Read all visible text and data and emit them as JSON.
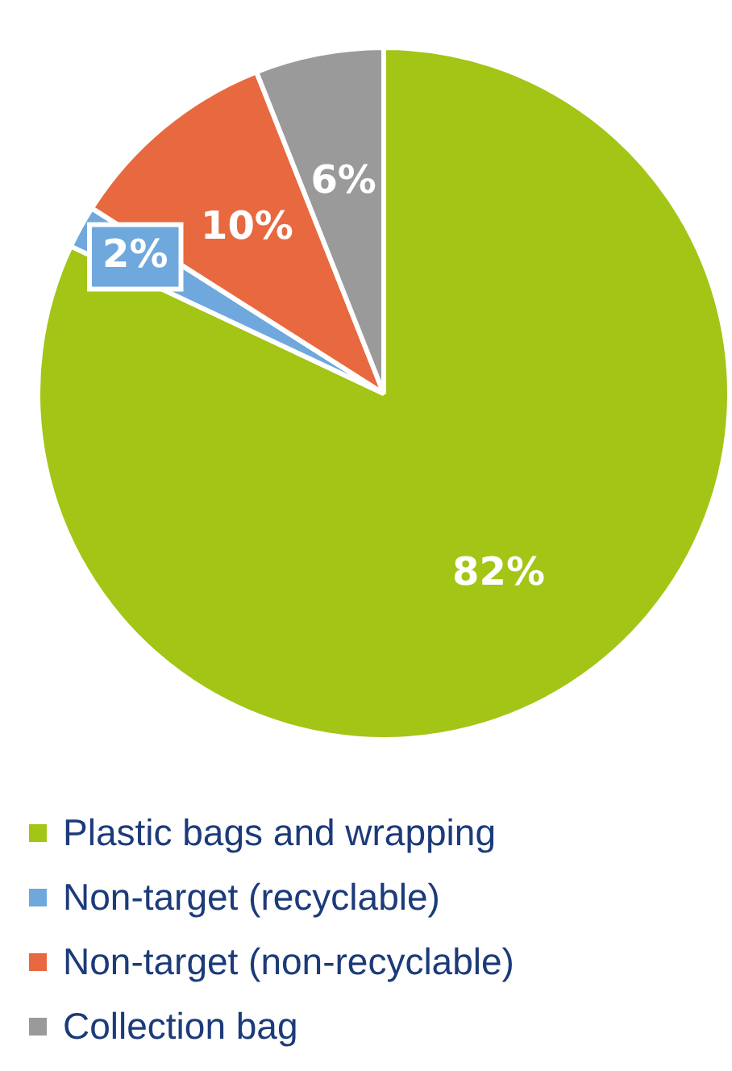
{
  "chart_data": {
    "type": "pie",
    "categories": [
      "Plastic bags and wrapping",
      "Non-target (recyclable)",
      "Non-target (non-recyclable)",
      "Collection bag"
    ],
    "values": [
      82,
      2,
      10,
      6
    ],
    "colors": [
      "#a3c516",
      "#6fa8dc",
      "#e8693f",
      "#9a9a9a"
    ],
    "value_labels": [
      "82%",
      "2%",
      "10%",
      "6%"
    ],
    "legend": "bottom"
  }
}
